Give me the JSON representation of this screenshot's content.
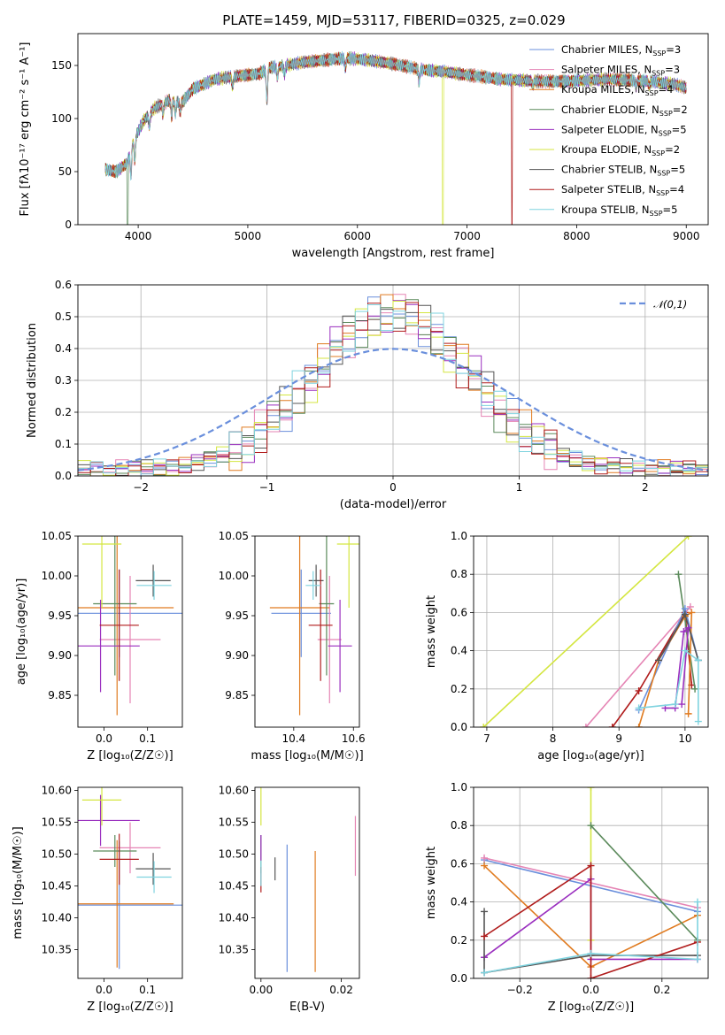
{
  "figure": {
    "title": "PLATE=1459, MJD=53117, FIBERID=0325, z=0.029"
  },
  "series": [
    {
      "key": "cm",
      "name": "Chabrier MILES",
      "nssp": "3",
      "color": "#6a8fdc"
    },
    {
      "key": "sm",
      "name": "Salpeter MILES",
      "nssp": "3",
      "color": "#e584b4"
    },
    {
      "key": "km",
      "name": "Kroupa MILES",
      "nssp": "4",
      "color": "#e07b20"
    },
    {
      "key": "ce",
      "name": "Chabrier ELODIE",
      "nssp": "2",
      "color": "#5b8a5b"
    },
    {
      "key": "se",
      "name": "Salpeter ELODIE",
      "nssp": "5",
      "color": "#9a2fbf"
    },
    {
      "key": "ke",
      "name": "Kroupa ELODIE",
      "nssp": "2",
      "color": "#d4e640"
    },
    {
      "key": "cs",
      "name": "Chabrier STELIB",
      "nssp": "5",
      "color": "#555555"
    },
    {
      "key": "ss",
      "name": "Salpeter STELIB",
      "nssp": "4",
      "color": "#b01c1c"
    },
    {
      "key": "ks",
      "name": "Kroupa STELIB",
      "nssp": "5",
      "color": "#7fd3df"
    }
  ],
  "chart_data": [
    {
      "id": "spectrum",
      "type": "line",
      "title": "PLATE=1459, MJD=53117, FIBERID=0325, z=0.029",
      "xlabel": "wavelength [Angstrom, rest frame]",
      "ylabel": "Flux [fλ10⁻¹⁷ erg cm⁻² s⁻¹ A⁻¹]",
      "xlim": [
        3450,
        9200
      ],
      "ylim": [
        0,
        180
      ],
      "xticks": [
        4000,
        5000,
        6000,
        7000,
        8000,
        9000
      ],
      "yticks": [
        0,
        50,
        100,
        150
      ],
      "grid": false,
      "legend": "top-right",
      "continuum": [
        [
          3700,
          52
        ],
        [
          3800,
          50
        ],
        [
          3900,
          58
        ],
        [
          3950,
          78
        ],
        [
          4050,
          98
        ],
        [
          4150,
          110
        ],
        [
          4300,
          118
        ],
        [
          4400,
          115
        ],
        [
          4500,
          128
        ],
        [
          4700,
          137
        ],
        [
          4900,
          140
        ],
        [
          5100,
          142
        ],
        [
          5200,
          148
        ],
        [
          5350,
          150
        ],
        [
          5500,
          153
        ],
        [
          5700,
          155
        ],
        [
          5900,
          157
        ],
        [
          6100,
          155
        ],
        [
          6300,
          152
        ],
        [
          6500,
          148
        ],
        [
          6600,
          146
        ],
        [
          6800,
          144
        ],
        [
          7000,
          141
        ],
        [
          7100,
          140
        ],
        [
          7300,
          137
        ],
        [
          7500,
          136
        ],
        [
          7700,
          135
        ],
        [
          7900,
          135
        ],
        [
          8100,
          136
        ],
        [
          8300,
          137
        ],
        [
          8500,
          136
        ],
        [
          8700,
          135
        ],
        [
          8900,
          132
        ],
        [
          9000,
          129
        ]
      ],
      "absorption": [
        [
          3934,
          -25
        ],
        [
          3969,
          -22
        ],
        [
          4102,
          -12
        ],
        [
          4227,
          -10
        ],
        [
          4305,
          -16
        ],
        [
          4340,
          -12
        ],
        [
          4383,
          -10
        ],
        [
          4861,
          -10
        ],
        [
          5175,
          -30
        ],
        [
          5270,
          -10
        ],
        [
          5335,
          -8
        ],
        [
          5890,
          -10
        ],
        [
          6563,
          -12
        ],
        [
          7600,
          -5
        ],
        [
          8542,
          -6
        ],
        [
          8662,
          -5
        ]
      ],
      "dropouts": [
        {
          "series": "ke",
          "x": 6780
        },
        {
          "series": "ss",
          "x": 7410
        },
        {
          "series": "ce",
          "x": 3905
        }
      ]
    },
    {
      "id": "residuals",
      "type": "histogram",
      "xlabel": "(data-model)/error",
      "ylabel": "Normed distribution",
      "xlim": [
        -2.5,
        2.5
      ],
      "ylim": [
        0,
        0.6
      ],
      "xticks": [
        -2,
        -1,
        0,
        1,
        2
      ],
      "yticks": [
        0.0,
        0.1,
        0.2,
        0.3,
        0.4,
        0.5,
        0.6
      ],
      "grid": true,
      "legend": "top-right",
      "reference": {
        "label": "𝒩(0,1)",
        "mean": 0,
        "sigma": 1,
        "color": "#6a8fdc"
      },
      "bin_width": 0.1
    },
    {
      "id": "age_vs_Z",
      "type": "errorbar",
      "xlabel": "Z [log₁₀(Z/Z☉)]",
      "ylabel": "age  [log₁₀(age/yr)]",
      "xlim": [
        -0.06,
        0.18
      ],
      "ylim": [
        9.81,
        10.05
      ],
      "xticks": [
        0.0,
        0.1
      ],
      "xticklabels": [
        "0.0",
        "0.1"
      ],
      "yticks": [
        9.85,
        9.9,
        9.95,
        10.0,
        10.05
      ],
      "points": [
        {
          "s": "cm",
          "x": 0.035,
          "y": 9.953,
          "xe": 0.16,
          "ye": 0.055
        },
        {
          "s": "sm",
          "x": 0.06,
          "y": 9.92,
          "xe": 0.07,
          "ye": 0.08
        },
        {
          "s": "km",
          "x": 0.03,
          "y": 9.96,
          "xe": 0.13,
          "ye": 0.135
        },
        {
          "s": "ce",
          "x": 0.025,
          "y": 9.965,
          "xe": 0.05,
          "ye": 0.09
        },
        {
          "s": "se",
          "x": -0.008,
          "y": 9.912,
          "xe": 0.09,
          "ye": 0.058
        },
        {
          "s": "ke",
          "x": -0.005,
          "y": 10.04,
          "xe": 0.045,
          "ye": 0.08
        },
        {
          "s": "cs",
          "x": 0.113,
          "y": 9.994,
          "xe": 0.04,
          "ye": 0.02
        },
        {
          "s": "ss",
          "x": 0.035,
          "y": 9.938,
          "xe": 0.045,
          "ye": 0.07
        },
        {
          "s": "ks",
          "x": 0.115,
          "y": 9.988,
          "xe": 0.04,
          "ye": 0.018
        }
      ]
    },
    {
      "id": "age_vs_mass",
      "type": "errorbar",
      "xlabel": "mass [log₁₀(M/M☉)]",
      "ylabel": "",
      "xlim": [
        10.27,
        10.62
      ],
      "ylim": [
        9.81,
        10.05
      ],
      "xticks": [
        10.4,
        10.6
      ],
      "xticklabels": [
        "10.4",
        "10.6"
      ],
      "yticks": [
        9.85,
        9.9,
        9.95,
        10.0,
        10.05
      ],
      "points": [
        {
          "s": "cm",
          "x": 10.425,
          "y": 9.953,
          "xe": 0.1,
          "ye": 0.055
        },
        {
          "s": "sm",
          "x": 10.52,
          "y": 9.92,
          "xe": 0.04,
          "ye": 0.08
        },
        {
          "s": "km",
          "x": 10.42,
          "y": 9.96,
          "xe": 0.1,
          "ye": 0.135
        },
        {
          "s": "ce",
          "x": 10.51,
          "y": 9.965,
          "xe": 0.025,
          "ye": 0.09
        },
        {
          "s": "se",
          "x": 10.555,
          "y": 9.912,
          "xe": 0.04,
          "ye": 0.058
        },
        {
          "s": "ke",
          "x": 10.585,
          "y": 10.04,
          "xe": 0.04,
          "ye": 0.08
        },
        {
          "s": "cs",
          "x": 10.475,
          "y": 9.994,
          "xe": 0.025,
          "ye": 0.02
        },
        {
          "s": "ss",
          "x": 10.49,
          "y": 9.938,
          "xe": 0.04,
          "ye": 0.07
        },
        {
          "s": "ks",
          "x": 10.465,
          "y": 9.988,
          "xe": 0.025,
          "ye": 0.018
        }
      ]
    },
    {
      "id": "weight_vs_age",
      "type": "line",
      "xlabel": "age  [log₁₀(age/yr)]",
      "ylabel": "mass weight",
      "xlim": [
        6.8,
        10.35
      ],
      "ylim": [
        0,
        1.0
      ],
      "xticks": [
        7,
        8,
        9,
        10
      ],
      "yticks": [
        0.0,
        0.2,
        0.4,
        0.6,
        0.8,
        1.0
      ],
      "grid": true,
      "lines": [
        {
          "s": "ke",
          "x": [
            6.95,
            10.05
          ],
          "y": [
            0.0,
            1.0
          ]
        },
        {
          "s": "sm",
          "x": [
            8.5,
            10.08
          ],
          "y": [
            0.0,
            0.63
          ]
        },
        {
          "s": "ss",
          "x": [
            8.9,
            9.3,
            10.0,
            10.1
          ],
          "y": [
            0.0,
            0.19,
            0.6,
            0.22
          ]
        },
        {
          "s": "ce",
          "x": [
            9.9,
            10.15
          ],
          "y": [
            0.8,
            0.2
          ]
        },
        {
          "s": "cm",
          "x": [
            9.3,
            10.0,
            10.2
          ],
          "y": [
            0.09,
            0.62,
            0.35
          ]
        },
        {
          "s": "km",
          "x": [
            9.3,
            9.6,
            10.0,
            10.1,
            10.05
          ],
          "y": [
            0.0,
            0.35,
            0.58,
            0.6,
            0.07
          ]
        },
        {
          "s": "cs",
          "x": [
            9.6,
            10.0,
            10.2
          ],
          "y": [
            0.35,
            0.59,
            0.35
          ]
        },
        {
          "s": "se",
          "x": [
            9.7,
            9.85,
            9.98,
            10.05,
            9.95
          ],
          "y": [
            0.1,
            0.1,
            0.5,
            0.52,
            0.12
          ]
        },
        {
          "s": "ks",
          "x": [
            9.3,
            9.85,
            10.0,
            10.2,
            10.2
          ],
          "y": [
            0.1,
            0.12,
            0.4,
            0.35,
            0.03
          ]
        }
      ]
    },
    {
      "id": "mass_vs_Z",
      "type": "errorbar",
      "xlabel": "Z [log₁₀(Z/Z☉)]",
      "ylabel": "mass [log₁₀(M/M☉)]",
      "xlim": [
        -0.06,
        0.18
      ],
      "ylim": [
        10.305,
        10.605
      ],
      "xticks": [
        0.0,
        0.1
      ],
      "xticklabels": [
        "0.0",
        "0.1"
      ],
      "yticks": [
        10.35,
        10.4,
        10.45,
        10.5,
        10.55,
        10.6
      ],
      "points": [
        {
          "s": "cm",
          "x": 0.035,
          "y": 10.42,
          "xe": 0.16,
          "ye": 0.1
        },
        {
          "s": "sm",
          "x": 0.06,
          "y": 10.51,
          "xe": 0.07,
          "ye": 0.04
        },
        {
          "s": "km",
          "x": 0.03,
          "y": 10.422,
          "xe": 0.13,
          "ye": 0.1
        },
        {
          "s": "ce",
          "x": 0.025,
          "y": 10.505,
          "xe": 0.05,
          "ye": 0.025
        },
        {
          "s": "se",
          "x": -0.008,
          "y": 10.553,
          "xe": 0.09,
          "ye": 0.04
        },
        {
          "s": "ke",
          "x": -0.005,
          "y": 10.585,
          "xe": 0.045,
          "ye": 0.04
        },
        {
          "s": "cs",
          "x": 0.113,
          "y": 10.477,
          "xe": 0.04,
          "ye": 0.025
        },
        {
          "s": "ss",
          "x": 0.035,
          "y": 10.492,
          "xe": 0.045,
          "ye": 0.04
        },
        {
          "s": "ks",
          "x": 0.115,
          "y": 10.464,
          "xe": 0.04,
          "ye": 0.025
        }
      ]
    },
    {
      "id": "mass_vs_ebv",
      "type": "errorbar",
      "xlabel": "E(B-V)",
      "ylabel": "",
      "xlim": [
        -0.0015,
        0.0245
      ],
      "ylim": [
        10.305,
        10.605
      ],
      "xticks": [
        0.0,
        0.02
      ],
      "xticklabels": [
        "0.00",
        "0.02"
      ],
      "yticks": [
        10.35,
        10.4,
        10.45,
        10.5,
        10.55,
        10.6
      ],
      "points": [
        {
          "s": "cm",
          "x": 0.0065,
          "y": 10.415,
          "xe": 0,
          "ye": 0.1
        },
        {
          "s": "sm",
          "x": 0.0235,
          "y": 10.513,
          "xe": 0,
          "ye": 0.047
        },
        {
          "s": "km",
          "x": 0.0135,
          "y": 10.41,
          "xe": 0,
          "ye": 0.095
        },
        {
          "s": "ce",
          "x": 0.0,
          "y": 10.5,
          "xe": 0,
          "ye": 0.03
        },
        {
          "s": "se",
          "x": 0.0,
          "y": 10.51,
          "xe": 0,
          "ye": 0.02
        },
        {
          "s": "ke",
          "x": 0.0,
          "y": 10.575,
          "xe": 0,
          "ye": 0.03
        },
        {
          "s": "cs",
          "x": 0.0035,
          "y": 10.477,
          "xe": 0,
          "ye": 0.018
        },
        {
          "s": "ss",
          "x": 0.0,
          "y": 10.46,
          "xe": 0,
          "ye": 0.02
        },
        {
          "s": "ks",
          "x": 0.0,
          "y": 10.47,
          "xe": 0,
          "ye": 0.02
        }
      ]
    },
    {
      "id": "weight_vs_Z",
      "type": "line",
      "xlabel": "Z [log₁₀(Z/Z☉)]",
      "ylabel": "mass weight",
      "xlim": [
        -0.33,
        0.33
      ],
      "ylim": [
        0,
        1.0
      ],
      "xticks": [
        -0.2,
        0.0,
        0.2
      ],
      "xticklabels": [
        "−0.2",
        "0.0",
        "0.2"
      ],
      "yticks": [
        0.0,
        0.2,
        0.4,
        0.6,
        0.8,
        1.0
      ],
      "grid": true,
      "lines": [
        {
          "s": "ke",
          "x": [
            0.0,
            0.0
          ],
          "y": [
            1.0,
            0.2
          ]
        },
        {
          "s": "cm",
          "x": [
            -0.3,
            0.3
          ],
          "y": [
            0.62,
            0.35
          ]
        },
        {
          "s": "sm",
          "x": [
            -0.3,
            0.3
          ],
          "y": [
            0.63,
            0.37
          ]
        },
        {
          "s": "km",
          "x": [
            -0.3,
            0.0,
            0.3
          ],
          "y": [
            0.59,
            0.06,
            0.33
          ]
        },
        {
          "s": "ce",
          "x": [
            0.0,
            0.3
          ],
          "y": [
            0.8,
            0.2
          ]
        },
        {
          "s": "se",
          "x": [
            -0.3,
            0.0,
            0.0,
            0.3
          ],
          "y": [
            0.11,
            0.52,
            0.1,
            0.1
          ]
        },
        {
          "s": "cs",
          "x": [
            -0.3,
            -0.3,
            0.0,
            0.3
          ],
          "y": [
            0.35,
            0.03,
            0.12,
            0.12
          ]
        },
        {
          "s": "ss",
          "x": [
            -0.3,
            0.0,
            0.0,
            0.3
          ],
          "y": [
            0.22,
            0.59,
            0.0,
            0.19
          ]
        },
        {
          "s": "ks",
          "x": [
            -0.3,
            0.0,
            0.3,
            0.3
          ],
          "y": [
            0.03,
            0.13,
            0.1,
            0.4
          ]
        }
      ]
    }
  ]
}
